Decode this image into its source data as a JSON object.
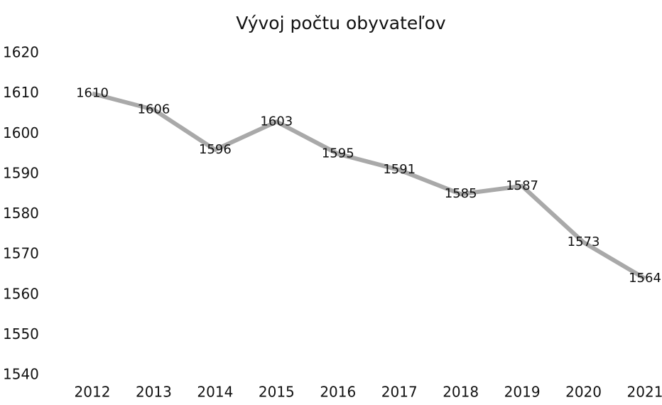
{
  "chart_data": {
    "type": "line",
    "title": "Vývoj počtu obyvateľov",
    "categories": [
      "2012",
      "2013",
      "2014",
      "2015",
      "2016",
      "2017",
      "2018",
      "2019",
      "2020",
      "2021"
    ],
    "values": [
      1610,
      1606,
      1596,
      1603,
      1595,
      1591,
      1585,
      1587,
      1573,
      1564
    ],
    "color": "#a9a9a9",
    "ylim": [
      1540,
      1620
    ],
    "yticks": [
      1540,
      1550,
      1560,
      1570,
      1580,
      1590,
      1600,
      1610,
      1620
    ],
    "grid": false
  }
}
